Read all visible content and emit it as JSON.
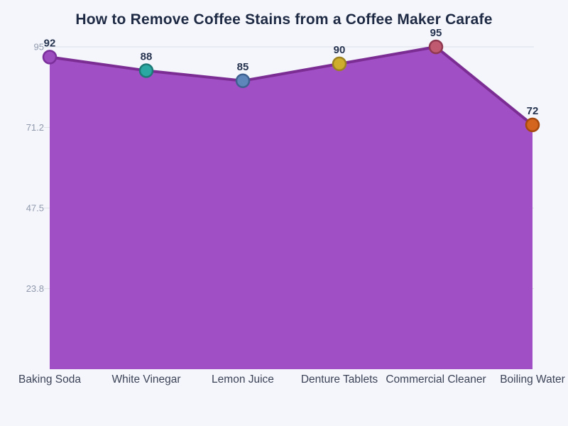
{
  "page": {
    "background": "#f4f6fb"
  },
  "chart_data": {
    "type": "area",
    "title": "How to Remove Coffee Stains from a Coffee Maker Carafe",
    "categories": [
      "Baking Soda",
      "White Vinegar",
      "Lemon Juice",
      "Denture Tablets",
      "Commercial Cleaner",
      "Boiling Water"
    ],
    "values": [
      92,
      88,
      85,
      90,
      95,
      72
    ],
    "data_labels": [
      "92",
      "88",
      "85",
      "90",
      "95",
      "72"
    ],
    "xlabel": "",
    "ylabel": "",
    "ylim": [
      0,
      95
    ],
    "yticks": [
      {
        "value": 95,
        "label": "95"
      },
      {
        "value": 71.25,
        "label": "71.2"
      },
      {
        "value": 47.5,
        "label": "47.5"
      },
      {
        "value": 23.75,
        "label": "23.8"
      }
    ],
    "grid": true,
    "legend_position": "none",
    "colors": {
      "title_text": "#1e2a44",
      "area_fill": "#a14fc4",
      "line": "#7b2d94",
      "gridline": "#dde1e8",
      "ytick_text": "#9099ac",
      "xlabel_text": "#3c4357",
      "data_label_text": "#26334f",
      "background": "#f4f6fb"
    },
    "point_styles": [
      {
        "name": "baking-soda-point",
        "fill": "#9d4cc0",
        "stroke": "#7a2f9a"
      },
      {
        "name": "white-vinegar-point",
        "fill": "#2ba8a2",
        "stroke": "#1d7a76"
      },
      {
        "name": "lemon-juice-point",
        "fill": "#5e86ba",
        "stroke": "#3f6191"
      },
      {
        "name": "denture-tablets-point",
        "fill": "#cfad2c",
        "stroke": "#9c8220"
      },
      {
        "name": "commercial-cleaner-point",
        "fill": "#c05a70",
        "stroke": "#8f3950"
      },
      {
        "name": "boiling-water-point",
        "fill": "#d4651f",
        "stroke": "#a5490f"
      }
    ]
  }
}
